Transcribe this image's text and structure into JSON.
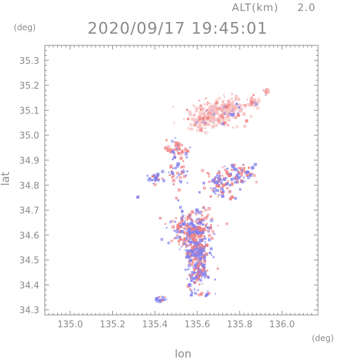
{
  "header": {
    "altitude_label": "ALT(km)",
    "altitude_value": "2.0",
    "timestamp": "2020/09/17 19:45:01"
  },
  "chart_data": {
    "type": "scatter",
    "xlabel": "lon",
    "ylabel": "lat",
    "x_unit": "(deg)",
    "y_unit": "(deg)",
    "xlim": [
      134.88,
      136.17
    ],
    "ylim": [
      34.28,
      35.36
    ],
    "xticks": [
      "135.0",
      "135.2",
      "135.4",
      "135.6",
      "135.8",
      "136.0"
    ],
    "yticks": [
      "34.3",
      "34.4",
      "34.5",
      "34.6",
      "34.7",
      "34.8",
      "34.9",
      "35.0",
      "35.1",
      "35.2",
      "35.3"
    ],
    "grid": false,
    "colors": {
      "axis": "#8a8a8a",
      "positive": "#f08080",
      "negative": "#8080f0",
      "light_positive": "#f7c0c0"
    },
    "clusters": [
      {
        "lon": 135.67,
        "lat": 35.09,
        "rx": 0.09,
        "ry": 0.04,
        "n": 260,
        "bias": 0.85
      },
      {
        "lon": 135.76,
        "lat": 35.12,
        "rx": 0.05,
        "ry": 0.03,
        "n": 90,
        "bias": 0.85
      },
      {
        "lon": 135.86,
        "lat": 35.14,
        "rx": 0.03,
        "ry": 0.02,
        "n": 30,
        "bias": 0.85
      },
      {
        "lon": 135.92,
        "lat": 35.18,
        "rx": 0.015,
        "ry": 0.01,
        "n": 14,
        "bias": 0.85
      },
      {
        "lon": 135.6,
        "lat": 35.05,
        "rx": 0.04,
        "ry": 0.02,
        "n": 30,
        "bias": 0.85
      },
      {
        "lon": 135.5,
        "lat": 34.95,
        "rx": 0.05,
        "ry": 0.03,
        "n": 40,
        "bias": 0.75
      },
      {
        "lon": 135.4,
        "lat": 34.83,
        "rx": 0.03,
        "ry": 0.015,
        "n": 25,
        "bias": 0.3
      },
      {
        "lon": 135.5,
        "lat": 34.85,
        "rx": 0.05,
        "ry": 0.05,
        "n": 40,
        "bias": 0.55
      },
      {
        "lon": 135.7,
        "lat": 34.8,
        "rx": 0.06,
        "ry": 0.05,
        "n": 80,
        "bias": 0.55
      },
      {
        "lon": 135.79,
        "lat": 34.85,
        "rx": 0.07,
        "ry": 0.04,
        "n": 80,
        "bias": 0.45
      },
      {
        "lon": 135.57,
        "lat": 34.63,
        "rx": 0.08,
        "ry": 0.06,
        "n": 280,
        "bias": 0.55
      },
      {
        "lon": 135.59,
        "lat": 34.54,
        "rx": 0.05,
        "ry": 0.05,
        "n": 180,
        "bias": 0.4
      },
      {
        "lon": 135.6,
        "lat": 34.45,
        "rx": 0.04,
        "ry": 0.04,
        "n": 110,
        "bias": 0.35
      },
      {
        "lon": 135.42,
        "lat": 34.35,
        "rx": 0.03,
        "ry": 0.01,
        "n": 15,
        "bias": 0.3
      },
      {
        "lon": 135.62,
        "lat": 34.37,
        "rx": 0.05,
        "ry": 0.01,
        "n": 15,
        "bias": 0.3
      },
      {
        "lon": 135.32,
        "lat": 34.76,
        "rx": 0.01,
        "ry": 0.01,
        "n": 4,
        "bias": 0.3
      }
    ]
  }
}
